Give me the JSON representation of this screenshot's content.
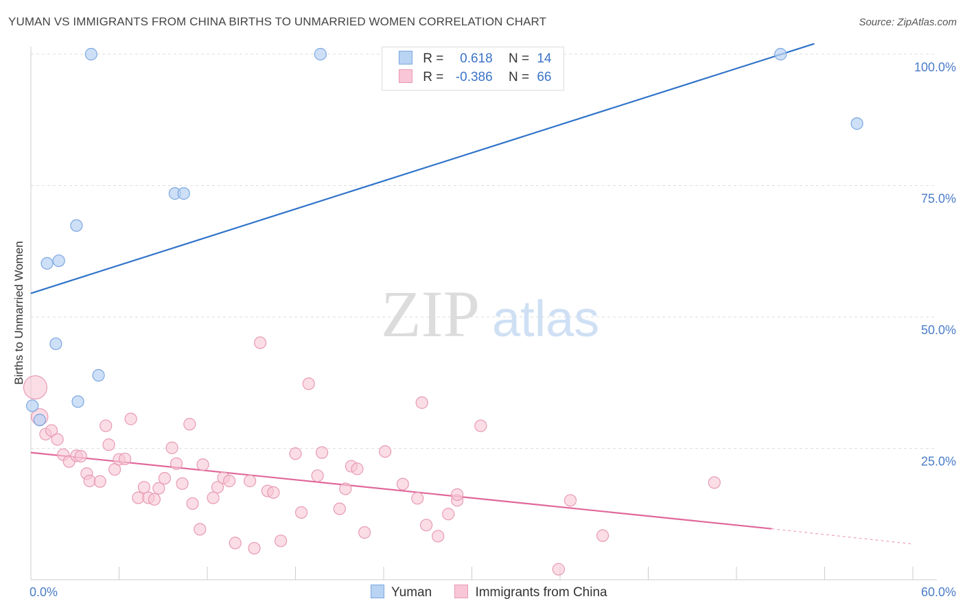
{
  "title": "YUMAN VS IMMIGRANTS FROM CHINA BIRTHS TO UNMARRIED WOMEN CORRELATION CHART",
  "source": "Source: ZipAtlas.com",
  "watermark": {
    "zip": "ZIP",
    "atlas": "atlas"
  },
  "legend": {
    "rows": [
      {
        "r_label": "R =",
        "r_value": "0.618",
        "n_label": "N =",
        "n_value": "14"
      },
      {
        "r_label": "R =",
        "r_value": "-0.386",
        "n_label": "N =",
        "n_value": "66"
      }
    ]
  },
  "colors": {
    "yuman_fill": "#b9d3f3",
    "yuman_stroke": "#7aa6e0",
    "yuman_line": "#2f73c9",
    "china_fill": "#f8c6d6",
    "china_stroke": "#e79ab4",
    "china_line": "#e0679a",
    "accent_text": "#4a7cc9"
  },
  "chart_data": {
    "type": "scatter",
    "xlabel": "",
    "ylabel": "Births to Unmarried Women",
    "xlim": [
      0,
      60
    ],
    "ylim": [
      0,
      100
    ],
    "x_tick_labels": [
      "0.0%",
      "60.0%"
    ],
    "y_tick_labels": [
      "25.0%",
      "50.0%",
      "75.0%",
      "100.0%"
    ],
    "y_ticks": [
      25,
      50,
      75,
      100
    ],
    "grid": true,
    "legend_position": "top-center",
    "series": [
      {
        "name": "Yuman",
        "points": [
          [
            0.1,
            33.1
          ],
          [
            0.6,
            30.4
          ],
          [
            1.1,
            60.2
          ],
          [
            1.9,
            60.7
          ],
          [
            1.7,
            44.9
          ],
          [
            3.1,
            67.4
          ],
          [
            3.2,
            33.9
          ],
          [
            4.6,
            38.9
          ],
          [
            4.1,
            100
          ],
          [
            9.8,
            73.5
          ],
          [
            10.4,
            73.5
          ],
          [
            19.7,
            100
          ],
          [
            51.0,
            100
          ],
          [
            56.2,
            86.8
          ]
        ],
        "trend": {
          "x": [
            0,
            53.3
          ],
          "y": [
            54.5,
            102
          ]
        }
      },
      {
        "name": "Immigrants from China",
        "points": [
          [
            0.3,
            36.6
          ],
          [
            0.6,
            31.0
          ],
          [
            1.0,
            27.7
          ],
          [
            1.4,
            28.4
          ],
          [
            1.8,
            26.7
          ],
          [
            2.2,
            23.8
          ],
          [
            2.6,
            22.5
          ],
          [
            3.1,
            23.6
          ],
          [
            3.4,
            23.5
          ],
          [
            3.8,
            20.2
          ],
          [
            4.0,
            18.8
          ],
          [
            4.7,
            18.7
          ],
          [
            5.1,
            29.3
          ],
          [
            5.3,
            25.7
          ],
          [
            5.7,
            21.0
          ],
          [
            6.0,
            22.9
          ],
          [
            6.4,
            23.0
          ],
          [
            6.8,
            30.6
          ],
          [
            7.3,
            15.6
          ],
          [
            7.7,
            17.6
          ],
          [
            8.0,
            15.6
          ],
          [
            8.4,
            15.3
          ],
          [
            8.7,
            17.4
          ],
          [
            9.1,
            19.3
          ],
          [
            9.6,
            25.1
          ],
          [
            9.9,
            22.1
          ],
          [
            10.3,
            18.3
          ],
          [
            10.8,
            29.6
          ],
          [
            11.0,
            14.5
          ],
          [
            11.5,
            9.6
          ],
          [
            11.7,
            21.9
          ],
          [
            12.4,
            15.6
          ],
          [
            12.7,
            17.6
          ],
          [
            13.1,
            19.4
          ],
          [
            13.5,
            18.8
          ],
          [
            13.9,
            7.0
          ],
          [
            14.9,
            18.8
          ],
          [
            15.2,
            6.0
          ],
          [
            15.6,
            45.1
          ],
          [
            16.1,
            16.9
          ],
          [
            16.5,
            16.6
          ],
          [
            17.0,
            7.4
          ],
          [
            18.0,
            24.0
          ],
          [
            18.4,
            12.8
          ],
          [
            18.9,
            37.3
          ],
          [
            19.5,
            19.8
          ],
          [
            19.8,
            24.2
          ],
          [
            21.0,
            13.5
          ],
          [
            21.4,
            17.3
          ],
          [
            21.8,
            21.6
          ],
          [
            22.2,
            21.1
          ],
          [
            22.7,
            9.0
          ],
          [
            24.1,
            24.4
          ],
          [
            25.3,
            18.2
          ],
          [
            26.3,
            15.5
          ],
          [
            26.6,
            33.7
          ],
          [
            26.9,
            10.4
          ],
          [
            27.7,
            8.3
          ],
          [
            28.4,
            12.5
          ],
          [
            29.0,
            15.1
          ],
          [
            29.0,
            16.2
          ],
          [
            30.6,
            29.3
          ],
          [
            35.9,
            2.0
          ],
          [
            36.7,
            15.1
          ],
          [
            38.9,
            8.4
          ],
          [
            46.5,
            18.5
          ]
        ],
        "trend": {
          "x": [
            0,
            50.4
          ],
          "y": [
            24.2,
            9.7
          ]
        },
        "trend_extension": {
          "x": [
            50.4,
            60
          ],
          "y": [
            9.7,
            6.8
          ]
        }
      }
    ]
  }
}
